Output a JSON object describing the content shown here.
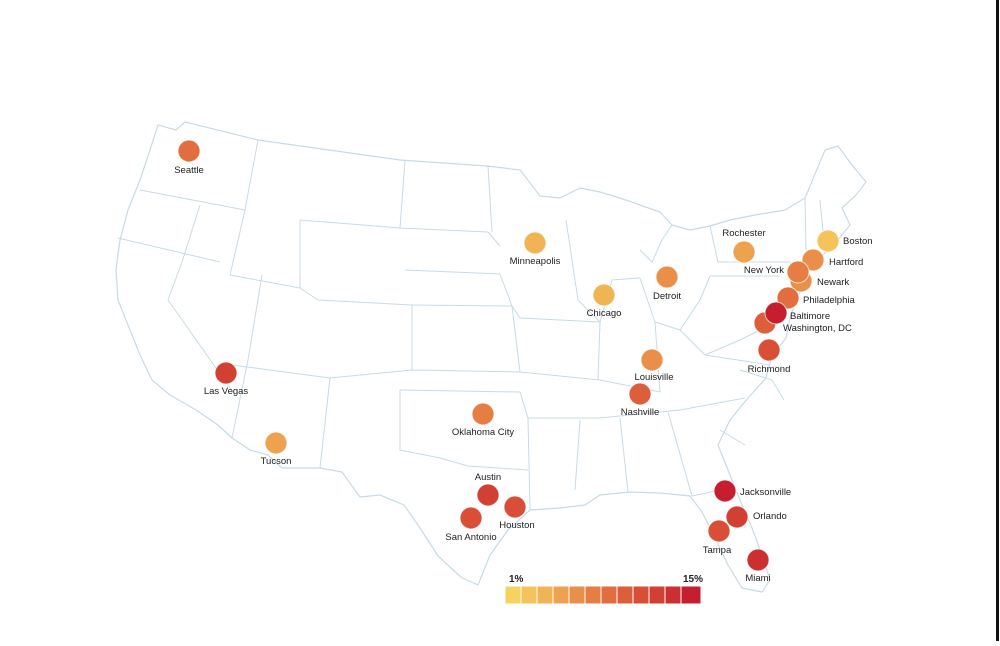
{
  "colors": {
    "scale": [
      "#f7d25f",
      "#f4c35a",
      "#f1b455",
      "#eea14f",
      "#ea8f49",
      "#e67e43",
      "#e26d3e",
      "#dd5e3a",
      "#d84e36",
      "#d23f33",
      "#cc2f31",
      "#c51f2f"
    ],
    "border": "#c7dbe6",
    "label": "#222222"
  },
  "legend": {
    "min_label": "1%",
    "max_label": "15%"
  },
  "cities": [
    {
      "name": "Seattle",
      "level": 6
    },
    {
      "name": "Las Vegas",
      "level": 9
    },
    {
      "name": "Tucson",
      "level": 3
    },
    {
      "name": "Oklahoma City",
      "level": 5
    },
    {
      "name": "Austin",
      "level": 9
    },
    {
      "name": "San Antonio",
      "level": 8
    },
    {
      "name": "Houston",
      "level": 8
    },
    {
      "name": "Minneapolis",
      "level": 2
    },
    {
      "name": "Chicago",
      "level": 2
    },
    {
      "name": "Detroit",
      "level": 4
    },
    {
      "name": "Louisville",
      "level": 4
    },
    {
      "name": "Nashville",
      "level": 7
    },
    {
      "name": "Rochester",
      "level": 3
    },
    {
      "name": "Boston",
      "level": 1
    },
    {
      "name": "Hartford",
      "level": 4
    },
    {
      "name": "New York",
      "level": 5
    },
    {
      "name": "Newark",
      "level": 4
    },
    {
      "name": "Philadelphia",
      "level": 6
    },
    {
      "name": "Baltimore",
      "level": 11
    },
    {
      "name": "Washington, DC",
      "level": 7
    },
    {
      "name": "Richmond",
      "level": 8
    },
    {
      "name": "Jacksonville",
      "level": 11
    },
    {
      "name": "Orlando",
      "level": 9
    },
    {
      "name": "Tampa",
      "level": 8
    },
    {
      "name": "Miami",
      "level": 10
    }
  ]
}
